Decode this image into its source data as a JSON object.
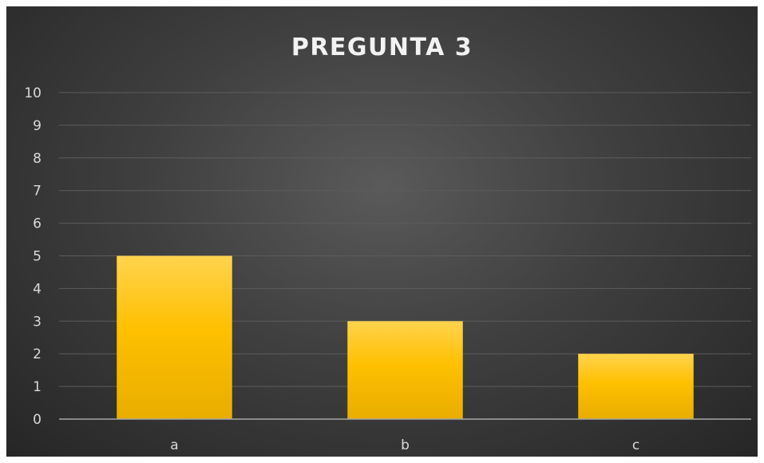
{
  "chart_data": {
    "type": "bar",
    "title": "PREGUNTA 3",
    "categories": [
      "a",
      "b",
      "c"
    ],
    "values": [
      5,
      3,
      2
    ],
    "xlabel": "",
    "ylabel": "",
    "ylim": [
      0,
      10
    ],
    "yticks": [
      0,
      1,
      2,
      3,
      4,
      5,
      6,
      7,
      8,
      9,
      10
    ],
    "grid": true,
    "legend": "none",
    "colors": {
      "bar_top": "#ffd34d",
      "bar_mid": "#ffc000",
      "bar_bottom": "#e8ad00",
      "gridline": "#5c5c5c",
      "axis": "#a6a6a6",
      "text": "#d9d9d9",
      "background": "#404040"
    }
  }
}
